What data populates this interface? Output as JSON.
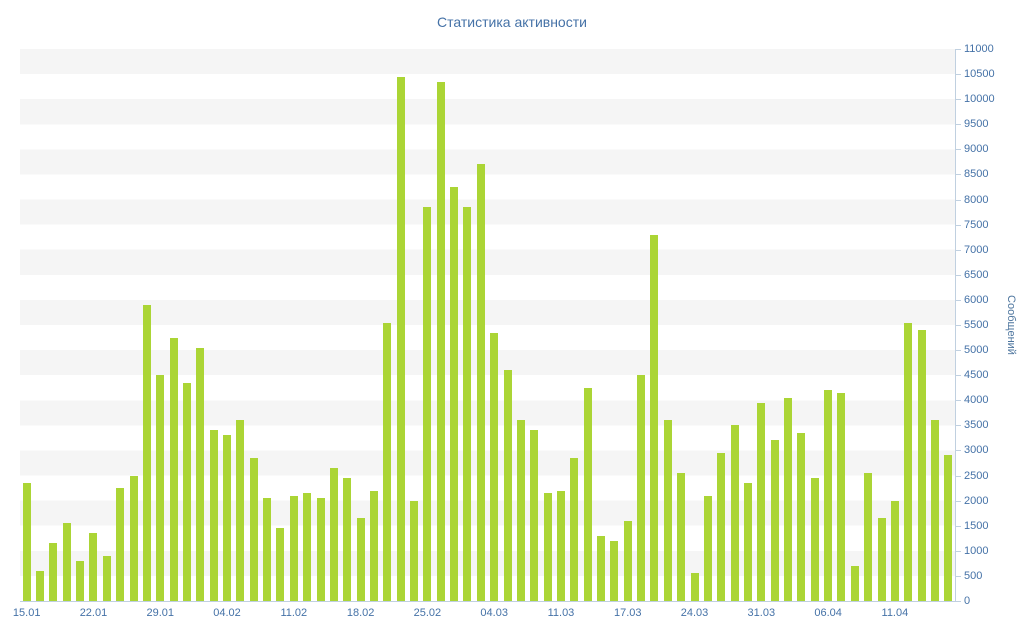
{
  "title": "Статистика активности",
  "colors": {
    "bar": "#abd535",
    "axis_text": "#4572a7",
    "axis_title_text": "#4d759e",
    "axis_line": "#c0d0e0",
    "band": "#f5f5f5"
  },
  "chart_data": {
    "type": "bar",
    "title": "Статистика активности",
    "xlabel": "",
    "ylabel": "Сообщений",
    "ylim": [
      0,
      11000
    ],
    "ytick_step": 500,
    "legend": "none",
    "grid": "alternating-bands",
    "x_labels": [
      {
        "text": "15.01",
        "index": 0
      },
      {
        "text": "22.01",
        "index": 5
      },
      {
        "text": "29.01",
        "index": 10
      },
      {
        "text": "04.02",
        "index": 15
      },
      {
        "text": "11.02",
        "index": 20
      },
      {
        "text": "18.02",
        "index": 25
      },
      {
        "text": "25.02",
        "index": 30
      },
      {
        "text": "04.03",
        "index": 35
      },
      {
        "text": "11.03",
        "index": 40
      },
      {
        "text": "17.03",
        "index": 45
      },
      {
        "text": "24.03",
        "index": 50
      },
      {
        "text": "31.03",
        "index": 55
      },
      {
        "text": "06.04",
        "index": 60
      },
      {
        "text": "11.04",
        "index": 65
      }
    ],
    "values": [
      2350,
      600,
      1150,
      1550,
      800,
      1350,
      900,
      2250,
      2500,
      5900,
      4500,
      5250,
      4350,
      5050,
      3400,
      3300,
      3600,
      2850,
      2050,
      1450,
      2100,
      2150,
      2050,
      2650,
      2450,
      1650,
      2200,
      5550,
      10450,
      2000,
      7850,
      10350,
      8250,
      7850,
      8700,
      5350,
      4600,
      3600,
      3400,
      2150,
      2200,
      2850,
      4250,
      1300,
      1200,
      1600,
      4500,
      7300,
      3600,
      2550,
      550,
      2100,
      2950,
      3500,
      2350,
      3950,
      3200,
      4050,
      3350,
      2450,
      4200,
      4150,
      700,
      2550,
      1650,
      2000,
      5550,
      5400,
      3600,
      2900
    ]
  }
}
